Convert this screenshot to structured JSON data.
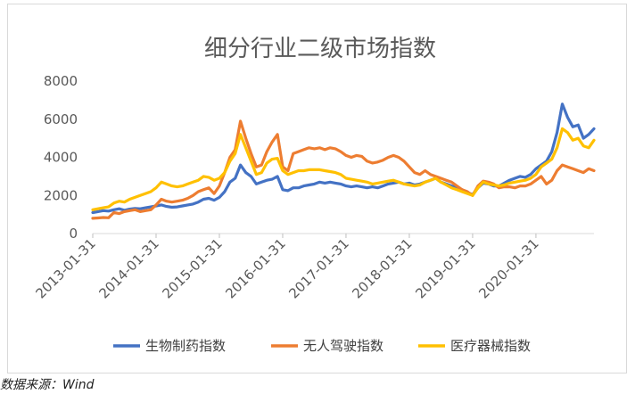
{
  "source_note": "数据来源：Wind",
  "chart_data": {
    "type": "line",
    "title": "细分行业二级市场指数",
    "xlabel": "",
    "ylabel": "",
    "ylim": [
      0,
      8000
    ],
    "yticks": [
      0,
      2000,
      4000,
      6000,
      8000
    ],
    "xtick_labels": [
      "2013-01-31",
      "2014-01-31",
      "2015-01-31",
      "2016-01-31",
      "2017-01-31",
      "2018-01-31",
      "2019-01-31",
      "2020-01-31"
    ],
    "grid": false,
    "legend_position": "bottom",
    "x": [
      "2013-01",
      "2013-02",
      "2013-03",
      "2013-04",
      "2013-05",
      "2013-06",
      "2013-07",
      "2013-08",
      "2013-09",
      "2013-10",
      "2013-11",
      "2013-12",
      "2014-01",
      "2014-02",
      "2014-03",
      "2014-04",
      "2014-05",
      "2014-06",
      "2014-07",
      "2014-08",
      "2014-09",
      "2014-10",
      "2014-11",
      "2014-12",
      "2015-01",
      "2015-02",
      "2015-03",
      "2015-04",
      "2015-05",
      "2015-06",
      "2015-07",
      "2015-08",
      "2015-09",
      "2015-10",
      "2015-11",
      "2015-12",
      "2016-01",
      "2016-02",
      "2016-03",
      "2016-04",
      "2016-05",
      "2016-06",
      "2016-07",
      "2016-08",
      "2016-09",
      "2016-10",
      "2016-11",
      "2016-12",
      "2017-01",
      "2017-02",
      "2017-03",
      "2017-04",
      "2017-05",
      "2017-06",
      "2017-07",
      "2017-08",
      "2017-09",
      "2017-10",
      "2017-11",
      "2017-12",
      "2018-01",
      "2018-02",
      "2018-03",
      "2018-04",
      "2018-05",
      "2018-06",
      "2018-07",
      "2018-08",
      "2018-09",
      "2018-10",
      "2018-11",
      "2018-12",
      "2019-01",
      "2019-02",
      "2019-03",
      "2019-04",
      "2019-05",
      "2019-06",
      "2019-07",
      "2019-08",
      "2019-09",
      "2019-10",
      "2019-11",
      "2019-12",
      "2020-01",
      "2020-02",
      "2020-03",
      "2020-04",
      "2020-05",
      "2020-06",
      "2020-07",
      "2020-08",
      "2020-09",
      "2020-10",
      "2020-11",
      "2020-12"
    ],
    "series": [
      {
        "name": "生物制药指数",
        "color": "#4472c4",
        "values": [
          1100,
          1150,
          1200,
          1180,
          1250,
          1300,
          1220,
          1280,
          1320,
          1300,
          1350,
          1400,
          1450,
          1500,
          1420,
          1380,
          1400,
          1450,
          1500,
          1550,
          1650,
          1800,
          1850,
          1750,
          1900,
          2200,
          2700,
          2900,
          3600,
          3200,
          3000,
          2600,
          2700,
          2800,
          2850,
          3000,
          2300,
          2250,
          2400,
          2400,
          2500,
          2550,
          2600,
          2700,
          2650,
          2700,
          2650,
          2600,
          2500,
          2450,
          2500,
          2450,
          2400,
          2450,
          2400,
          2500,
          2600,
          2650,
          2700,
          2600,
          2650,
          2550,
          2600,
          2700,
          2800,
          2900,
          2700,
          2600,
          2500,
          2400,
          2300,
          2150,
          2050,
          2400,
          2650,
          2600,
          2500,
          2500,
          2650,
          2800,
          2900,
          3000,
          2950,
          3100,
          3400,
          3600,
          3800,
          4300,
          5300,
          6800,
          6100,
          5600,
          5700,
          5000,
          5200,
          5500
        ]
      },
      {
        "name": "无人驾驶指数",
        "color": "#ed7d31",
        "values": [
          800,
          820,
          840,
          830,
          1100,
          1050,
          1150,
          1200,
          1250,
          1150,
          1200,
          1250,
          1500,
          1800,
          1700,
          1650,
          1700,
          1750,
          1850,
          2000,
          2200,
          2300,
          2400,
          2100,
          2500,
          3200,
          4000,
          4400,
          5900,
          5000,
          4200,
          3500,
          3600,
          4300,
          4800,
          5200,
          3500,
          3300,
          4200,
          4300,
          4400,
          4500,
          4450,
          4500,
          4400,
          4500,
          4450,
          4300,
          4100,
          4000,
          4100,
          4050,
          3800,
          3700,
          3750,
          3850,
          4000,
          4100,
          4000,
          3800,
          3500,
          3200,
          3100,
          3300,
          3100,
          3000,
          2900,
          2800,
          2700,
          2500,
          2300,
          2200,
          2000,
          2500,
          2750,
          2700,
          2600,
          2400,
          2450,
          2450,
          2400,
          2500,
          2500,
          2600,
          2800,
          3000,
          2600,
          2800,
          3300,
          3600,
          3500,
          3400,
          3300,
          3200,
          3400,
          3300
        ]
      },
      {
        "name": "医疗器械指数",
        "color": "#ffc000",
        "values": [
          1250,
          1300,
          1350,
          1400,
          1600,
          1700,
          1650,
          1800,
          1900,
          2000,
          2100,
          2200,
          2400,
          2700,
          2600,
          2500,
          2450,
          2500,
          2600,
          2700,
          2800,
          3000,
          2950,
          2800,
          2900,
          3200,
          3800,
          4200,
          5200,
          4500,
          3800,
          3100,
          3200,
          3700,
          3900,
          3950,
          3300,
          3100,
          3200,
          3300,
          3300,
          3350,
          3350,
          3350,
          3300,
          3250,
          3200,
          3100,
          2900,
          2850,
          2800,
          2750,
          2700,
          2600,
          2650,
          2700,
          2750,
          2800,
          2700,
          2600,
          2550,
          2500,
          2550,
          2700,
          2800,
          2900,
          2700,
          2550,
          2400,
          2300,
          2200,
          2100,
          2000,
          2400,
          2700,
          2600,
          2550,
          2500,
          2550,
          2650,
          2700,
          2750,
          2800,
          2900,
          3100,
          3500,
          3700,
          3900,
          4500,
          5500,
          5300,
          4900,
          5000,
          4600,
          4500,
          4900
        ]
      }
    ]
  }
}
